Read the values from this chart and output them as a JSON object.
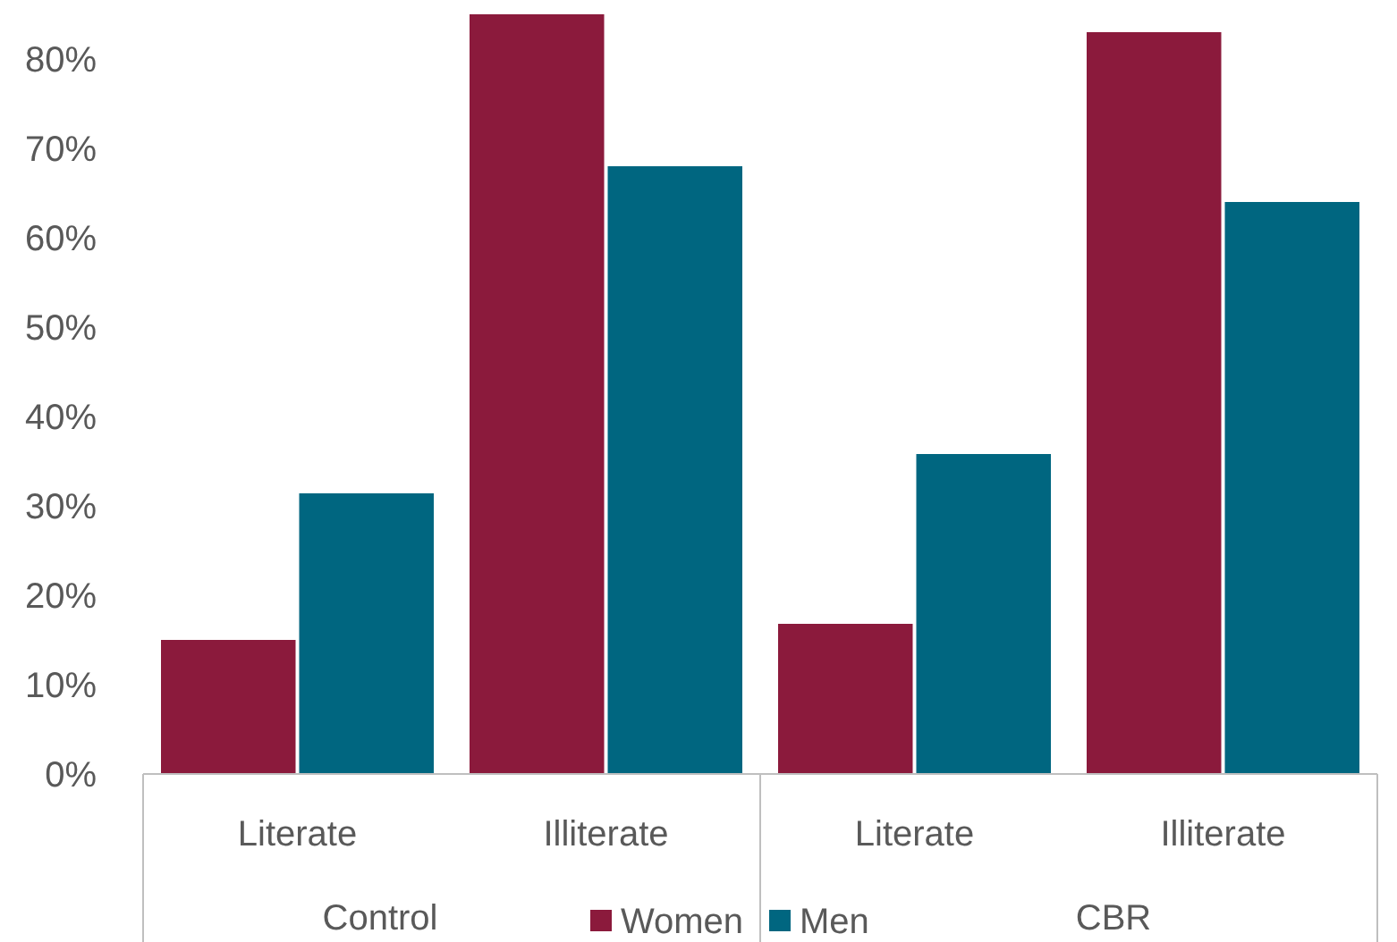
{
  "chart_data": {
    "type": "bar",
    "categories": [
      "Literate",
      "Illiterate",
      "Literate",
      "Illiterate"
    ],
    "series": [
      {
        "name": "Women",
        "color": "#8b1a3c",
        "values": [
          15,
          85,
          16.8,
          83
        ]
      },
      {
        "name": "Men",
        "color": "#006680",
        "values": [
          31.4,
          68,
          35.8,
          64
        ]
      }
    ],
    "ylim": [
      0,
      85
    ],
    "yticks": [
      {
        "value": 0,
        "label": "0%"
      },
      {
        "value": 10,
        "label": "10%"
      },
      {
        "value": 20,
        "label": "20%"
      },
      {
        "value": 30,
        "label": "30%"
      },
      {
        "value": 40,
        "label": "40%"
      },
      {
        "value": 50,
        "label": "50%"
      },
      {
        "value": 60,
        "label": "60%"
      },
      {
        "value": 70,
        "label": "70%"
      },
      {
        "value": 80,
        "label": "80%"
      }
    ],
    "annotations": [
      "Control",
      "CBR"
    ],
    "legend": "bottom",
    "grid": false
  }
}
